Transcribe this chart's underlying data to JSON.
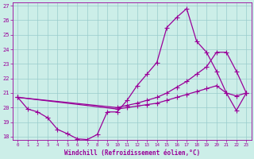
{
  "xlabel": "Windchill (Refroidissement éolien,°C)",
  "bg_color": "#cceee8",
  "line_color": "#990099",
  "grid_color": "#99cccc",
  "xlim_min": -0.5,
  "xlim_max": 23.5,
  "ylim_min": 17.8,
  "ylim_max": 27.2,
  "yticks": [
    18,
    19,
    20,
    21,
    22,
    23,
    24,
    25,
    26,
    27
  ],
  "xticks": [
    0,
    1,
    2,
    3,
    4,
    5,
    6,
    7,
    8,
    9,
    10,
    11,
    12,
    13,
    14,
    15,
    16,
    17,
    18,
    19,
    20,
    21,
    22,
    23
  ],
  "line1_x": [
    0,
    1,
    2,
    3,
    4,
    5,
    6,
    7,
    8,
    9,
    10,
    11,
    12,
    13,
    14,
    15,
    16,
    17,
    18,
    19,
    20,
    21,
    22,
    23
  ],
  "line1_y": [
    20.7,
    19.9,
    19.7,
    19.3,
    18.5,
    18.2,
    17.85,
    17.8,
    18.15,
    19.7,
    19.7,
    20.5,
    21.5,
    22.3,
    23.1,
    25.5,
    26.2,
    26.8,
    24.55,
    23.8,
    22.5,
    21.0,
    19.8,
    21.0
  ],
  "line2_x": [
    0,
    10,
    11,
    12,
    13,
    14,
    15,
    16,
    17,
    18,
    19,
    20,
    21,
    22,
    23
  ],
  "line2_y": [
    20.7,
    20.0,
    20.15,
    20.3,
    20.5,
    20.7,
    21.0,
    21.4,
    21.8,
    22.3,
    22.8,
    23.8,
    23.8,
    22.5,
    21.0
  ],
  "line3_x": [
    0,
    10,
    11,
    12,
    13,
    14,
    15,
    16,
    17,
    18,
    19,
    20,
    21,
    22,
    23
  ],
  "line3_y": [
    20.7,
    19.9,
    20.0,
    20.1,
    20.2,
    20.3,
    20.5,
    20.7,
    20.9,
    21.1,
    21.3,
    21.5,
    21.0,
    20.8,
    21.0
  ],
  "xlabel_fontsize": 5.5,
  "tick_fontsize": 5,
  "linewidth": 0.9,
  "markersize": 2.5
}
